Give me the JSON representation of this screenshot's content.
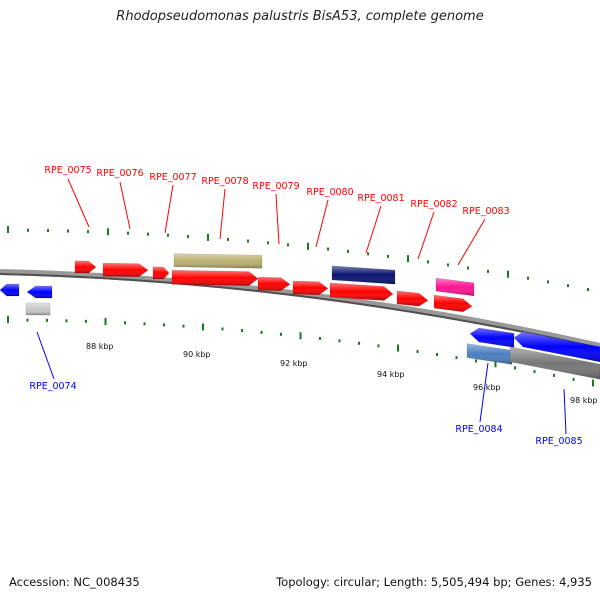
{
  "title": "Rhodopseudomonas palustris BisA53, complete genome",
  "footer": {
    "accession": "Accession: NC_008435",
    "summary": "Topology: circular; Length: 5,505,494 bp; Genes: 4,935"
  },
  "colors": {
    "strand_plus": "#ff0000",
    "strand_minus": "#0000ff",
    "olive": "#b8b06e",
    "navy": "#0a1470",
    "magenta": "#ff1493",
    "steel": "#4a7fc0",
    "gray": "#808080",
    "tick": "#1a7a1a"
  },
  "scale": [
    {
      "label": "88 kbp"
    },
    {
      "label": "90 kbp"
    },
    {
      "label": "92 kbp"
    },
    {
      "label": "94 kbp"
    },
    {
      "label": "96 kbp"
    },
    {
      "label": "98 kbp"
    }
  ],
  "genes": [
    {
      "name": "RPE_0074"
    },
    {
      "name": "RPE_0075"
    },
    {
      "name": "RPE_0076"
    },
    {
      "name": "RPE_0077"
    },
    {
      "name": "RPE_0078"
    },
    {
      "name": "RPE_0079"
    },
    {
      "name": "RPE_0080"
    },
    {
      "name": "RPE_0081"
    },
    {
      "name": "RPE_0082"
    },
    {
      "name": "RPE_0083"
    },
    {
      "name": "RPE_0084"
    },
    {
      "name": "RPE_0085"
    }
  ]
}
